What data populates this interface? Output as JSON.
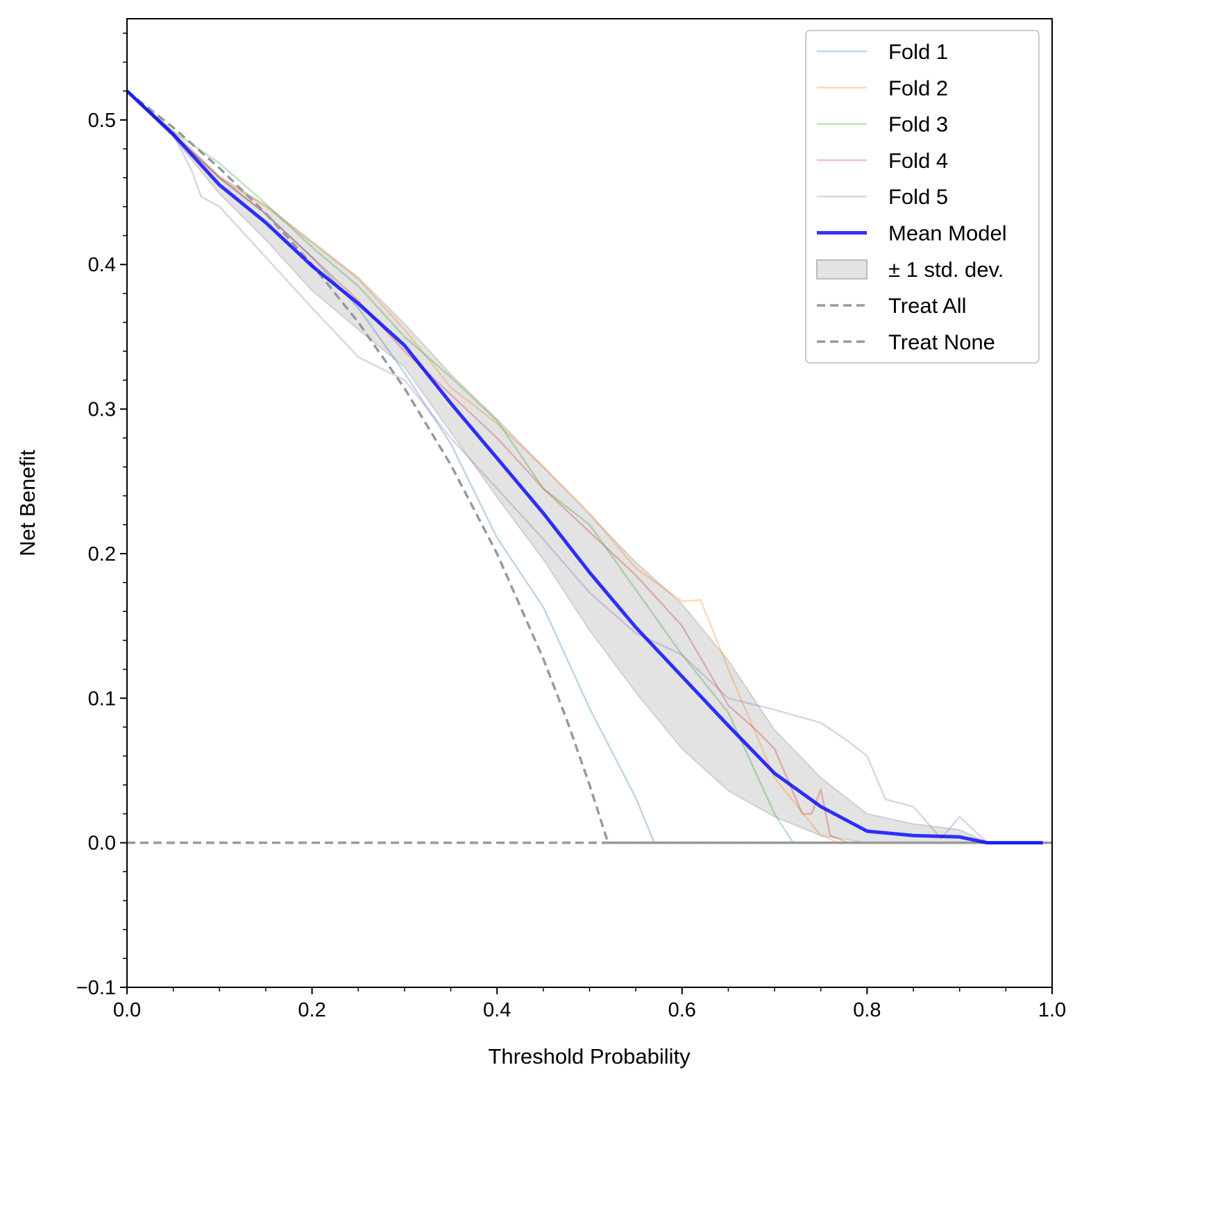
{
  "chart_data": {
    "type": "line",
    "title": "",
    "xlabel": "Threshold Probability",
    "ylabel": "Net Benefit",
    "xlim": [
      0,
      1
    ],
    "ylim": [
      -0.1,
      0.57
    ],
    "xticks": [
      "0.0",
      "0.2",
      "0.4",
      "0.6",
      "0.8",
      "1.0"
    ],
    "yticks": [
      "−0.1",
      "0.0",
      "0.1",
      "0.2",
      "0.3",
      "0.4",
      "0.5"
    ],
    "grid": false,
    "legend_position": "top-right",
    "series": [
      {
        "name": "Fold 1",
        "color": "#1f77b4",
        "opacity": 0.3,
        "x": [
          0,
          0.05,
          0.1,
          0.15,
          0.2,
          0.25,
          0.3,
          0.35,
          0.4,
          0.45,
          0.5,
          0.55,
          0.57,
          0.6,
          0.7,
          0.8,
          0.9,
          1.0
        ],
        "y": [
          0.52,
          0.49,
          0.46,
          0.435,
          0.405,
          0.37,
          0.325,
          0.276,
          0.211,
          0.163,
          0.093,
          0.031,
          0,
          0,
          0,
          0,
          0,
          0
        ]
      },
      {
        "name": "Fold 2",
        "color": "#ff7f0e",
        "opacity": 0.3,
        "x": [
          0,
          0.05,
          0.1,
          0.15,
          0.2,
          0.25,
          0.3,
          0.35,
          0.4,
          0.45,
          0.5,
          0.55,
          0.6,
          0.62,
          0.65,
          0.7,
          0.75,
          0.77,
          0.8,
          0.9,
          1.0
        ],
        "y": [
          0.52,
          0.49,
          0.46,
          0.44,
          0.415,
          0.39,
          0.355,
          0.315,
          0.29,
          0.26,
          0.228,
          0.19,
          0.167,
          0.168,
          0.12,
          0.045,
          0.005,
          0,
          0,
          0,
          0
        ]
      },
      {
        "name": "Fold 3",
        "color": "#2ca02c",
        "opacity": 0.3,
        "x": [
          0,
          0.05,
          0.1,
          0.15,
          0.2,
          0.25,
          0.3,
          0.35,
          0.4,
          0.45,
          0.5,
          0.55,
          0.6,
          0.65,
          0.7,
          0.72,
          0.8,
          0.9,
          1.0
        ],
        "y": [
          0.52,
          0.492,
          0.47,
          0.442,
          0.412,
          0.385,
          0.35,
          0.322,
          0.292,
          0.245,
          0.22,
          0.175,
          0.13,
          0.09,
          0.02,
          0,
          0,
          0,
          0
        ]
      },
      {
        "name": "Fold 4",
        "color": "#d62728",
        "opacity": 0.3,
        "x": [
          0,
          0.05,
          0.1,
          0.15,
          0.2,
          0.25,
          0.3,
          0.35,
          0.4,
          0.45,
          0.5,
          0.55,
          0.6,
          0.65,
          0.68,
          0.7,
          0.73,
          0.74,
          0.75,
          0.76,
          0.78,
          0.8,
          0.9,
          1.0
        ],
        "y": [
          0.52,
          0.49,
          0.46,
          0.435,
          0.405,
          0.375,
          0.34,
          0.31,
          0.28,
          0.245,
          0.215,
          0.185,
          0.15,
          0.095,
          0.078,
          0.065,
          0.02,
          0.02,
          0.037,
          0.005,
          0,
          0,
          0,
          0
        ]
      },
      {
        "name": "Fold 5",
        "color": "#9467bd",
        "opacity": 0.3,
        "x": [
          0,
          0.05,
          0.07,
          0.08,
          0.1,
          0.15,
          0.2,
          0.25,
          0.3,
          0.35,
          0.4,
          0.45,
          0.5,
          0.55,
          0.6,
          0.65,
          0.7,
          0.75,
          0.78,
          0.8,
          0.82,
          0.85,
          0.88,
          0.9,
          0.93,
          1.0
        ],
        "y": [
          0.52,
          0.49,
          0.465,
          0.447,
          0.44,
          0.405,
          0.37,
          0.336,
          0.32,
          0.28,
          0.245,
          0.21,
          0.173,
          0.145,
          0.13,
          0.1,
          0.092,
          0.083,
          0.07,
          0.06,
          0.03,
          0.025,
          0.003,
          0.018,
          0,
          0
        ]
      },
      {
        "name": "Mean Model",
        "color": "#0000ff",
        "opacity": 0.8,
        "x": [
          0,
          0.05,
          0.1,
          0.15,
          0.2,
          0.25,
          0.3,
          0.35,
          0.4,
          0.45,
          0.5,
          0.55,
          0.6,
          0.65,
          0.7,
          0.75,
          0.8,
          0.85,
          0.9,
          0.93,
          0.99
        ],
        "y": [
          0.52,
          0.49,
          0.455,
          0.429,
          0.399,
          0.373,
          0.344,
          0.304,
          0.266,
          0.228,
          0.187,
          0.149,
          0.115,
          0.081,
          0.048,
          0.025,
          0.008,
          0.005,
          0.004,
          0,
          0
        ],
        "std": [
          0,
          0.002,
          0.006,
          0.012,
          0.017,
          0.018,
          0.015,
          0.02,
          0.027,
          0.032,
          0.04,
          0.045,
          0.05,
          0.045,
          0.03,
          0.02,
          0.012,
          0.008,
          0.005,
          0,
          0
        ]
      },
      {
        "name": "Treat All",
        "color": "#999999",
        "dashed": true,
        "x": [
          0,
          0.05,
          0.1,
          0.15,
          0.2,
          0.25,
          0.3,
          0.35,
          0.4,
          0.45,
          0.475,
          0.5,
          0.52,
          0.6,
          0.8,
          1.0
        ],
        "y": [
          0.52,
          0.4947,
          0.4667,
          0.4353,
          0.4,
          0.36,
          0.3143,
          0.2615,
          0.2,
          0.1273,
          0.0857,
          0.04,
          0,
          0,
          0,
          0
        ]
      },
      {
        "name": "Treat None",
        "color": "#999999",
        "dashed": true,
        "x": [
          0,
          1
        ],
        "y": [
          0,
          0
        ]
      }
    ],
    "band_label": "± 1 std. dev.",
    "band_color": "#cccccc"
  }
}
